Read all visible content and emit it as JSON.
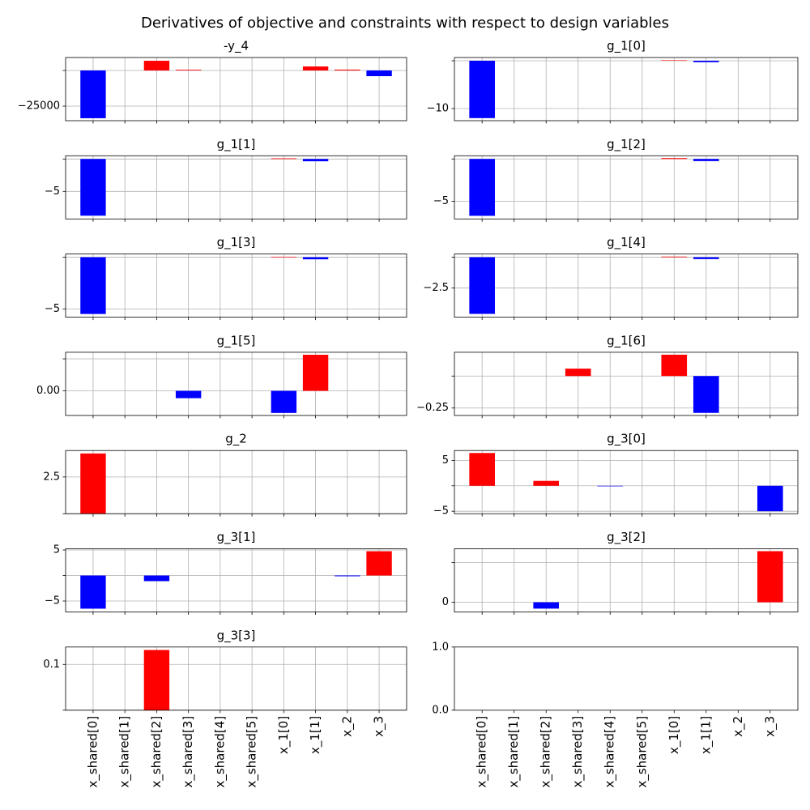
{
  "title": "Derivatives of objective and constraints with respect to design variables",
  "categories": [
    "x_shared[0]",
    "x_shared[1]",
    "x_shared[2]",
    "x_shared[3]",
    "x_shared[4]",
    "x_shared[5]",
    "x_1[0]",
    "x_1[1]",
    "x_2",
    "x_3"
  ],
  "colors": {
    "positive": "#ff0000",
    "negative": "#0000ff"
  },
  "chart_data": [
    {
      "type": "bar",
      "title": "-y_4",
      "values": [
        -33500,
        0,
        6800,
        500,
        0,
        0,
        0,
        2800,
        600,
        -4000
      ],
      "ylim": [
        -35227,
        9090
      ],
      "yticks": [
        {
          "value": -25000,
          "label": "−25000"
        }
      ],
      "yticks_unlabeled": [
        0
      ],
      "grid": true
    },
    {
      "type": "bar",
      "title": "g_1[0]",
      "values": [
        -12.0,
        0,
        0,
        0,
        0,
        0,
        0.1,
        -0.3,
        0,
        0
      ],
      "ylim": [
        -12.54,
        0.68
      ],
      "yticks": [
        {
          "value": -10,
          "label": "−10"
        }
      ],
      "yticks_unlabeled": [
        0
      ],
      "grid": true
    },
    {
      "type": "bar",
      "title": "g_1[1]",
      "values": [
        -8.75,
        0,
        0,
        0,
        0,
        0,
        0.1,
        -0.35,
        0,
        0
      ],
      "ylim": [
        -9.25,
        0.5
      ],
      "yticks": [
        {
          "value": -5,
          "label": "−5"
        }
      ],
      "yticks_unlabeled": [
        0
      ],
      "grid": true
    },
    {
      "type": "bar",
      "title": "g_1[2]",
      "values": [
        -6.73,
        0,
        0,
        0,
        0,
        0,
        0.1,
        -0.25,
        0,
        0
      ],
      "ylim": [
        -7.1,
        0.38
      ],
      "yticks": [
        {
          "value": -5,
          "label": "−5"
        }
      ],
      "yticks_unlabeled": [
        0
      ],
      "grid": true
    },
    {
      "type": "bar",
      "title": "g_1[3]",
      "values": [
        -5.47,
        0,
        0,
        0,
        0,
        0,
        0.05,
        -0.2,
        0,
        0
      ],
      "ylim": [
        -5.78,
        0.31
      ],
      "yticks": [
        {
          "value": -5,
          "label": "−5"
        }
      ],
      "yticks_unlabeled": [
        0
      ],
      "grid": true
    },
    {
      "type": "bar",
      "title": "g_1[4]",
      "values": [
        -4.6,
        0,
        0,
        0,
        0,
        0,
        0.05,
        -0.15,
        0,
        0
      ],
      "ylim": [
        -4.87,
        0.26
      ],
      "yticks": [
        {
          "value": -2.5,
          "label": "−2.5"
        }
      ],
      "yticks_unlabeled": [
        0
      ],
      "grid": true
    },
    {
      "type": "bar",
      "title": "g_1[5]",
      "values": [
        0,
        0,
        0,
        -0.0115,
        0,
        0,
        -0.0346,
        0.0564,
        0,
        0
      ],
      "ylim": [
        -0.0385,
        0.0603
      ],
      "yticks": [
        {
          "value": 0,
          "label": "0.00"
        }
      ],
      "yticks_unlabeled": [
        0.05
      ],
      "grid": true
    },
    {
      "type": "bar",
      "title": "g_1[6]",
      "values": [
        0,
        0,
        0,
        0.058,
        0,
        0,
        0.167,
        -0.288,
        0,
        0
      ],
      "ylim": [
        -0.308,
        0.186
      ],
      "yticks": [
        {
          "value": -0.25,
          "label": "−0.25"
        }
      ],
      "yticks_unlabeled": [
        0
      ],
      "grid": true
    },
    {
      "type": "bar",
      "title": "g_2",
      "values": [
        4.1,
        0,
        0,
        0,
        0,
        0,
        0,
        0,
        0,
        0
      ],
      "ylim": [
        0,
        4.3
      ],
      "yticks": [
        2.5
      ],
      "yticks_unlabeled": [
        0
      ],
      "grid": true
    },
    {
      "type": "bar",
      "title": "g_3[0]",
      "values": [
        6.45,
        0,
        0.97,
        0,
        -0.1,
        0,
        0,
        0,
        0,
        -5.0
      ],
      "ylim": [
        -5.48,
        6.94
      ],
      "yticks": [
        5,
        {
          "value": -5,
          "label": "−5"
        }
      ],
      "yticks_unlabeled": [
        0
      ],
      "grid": true
    },
    {
      "type": "bar",
      "title": "g_3[1]",
      "values": [
        -6.5,
        0,
        -1.1,
        0,
        0,
        0,
        0,
        0,
        -0.15,
        4.76
      ],
      "ylim": [
        -7.14,
        5.24
      ],
      "yticks": [
        5,
        {
          "value": -5,
          "label": "−5"
        }
      ],
      "yticks_unlabeled": [
        0
      ],
      "grid": true
    },
    {
      "type": "bar",
      "title": "g_3[2]",
      "values": [
        0,
        0,
        -0.08,
        0,
        0,
        0,
        0,
        0,
        0,
        0.643
      ],
      "ylim": [
        -0.122,
        0.673
      ],
      "yticks": [
        0
      ],
      "yticks_unlabeled": [
        0.5
      ],
      "grid": true
    },
    {
      "type": "bar",
      "title": "g_3[3]",
      "values": [
        0,
        0,
        0.1316,
        0,
        0,
        0,
        0,
        0,
        0,
        0
      ],
      "ylim": [
        0,
        0.138
      ],
      "yticks": [
        0.1
      ],
      "yticks_unlabeled": [
        0
      ],
      "grid": true
    },
    {
      "type": "bar",
      "ylim": [
        0,
        1
      ],
      "yticks": [
        {
          "value": 0,
          "label": "0.0"
        },
        {
          "value": 1,
          "label": "1.0"
        }
      ],
      "grid": false
    }
  ]
}
